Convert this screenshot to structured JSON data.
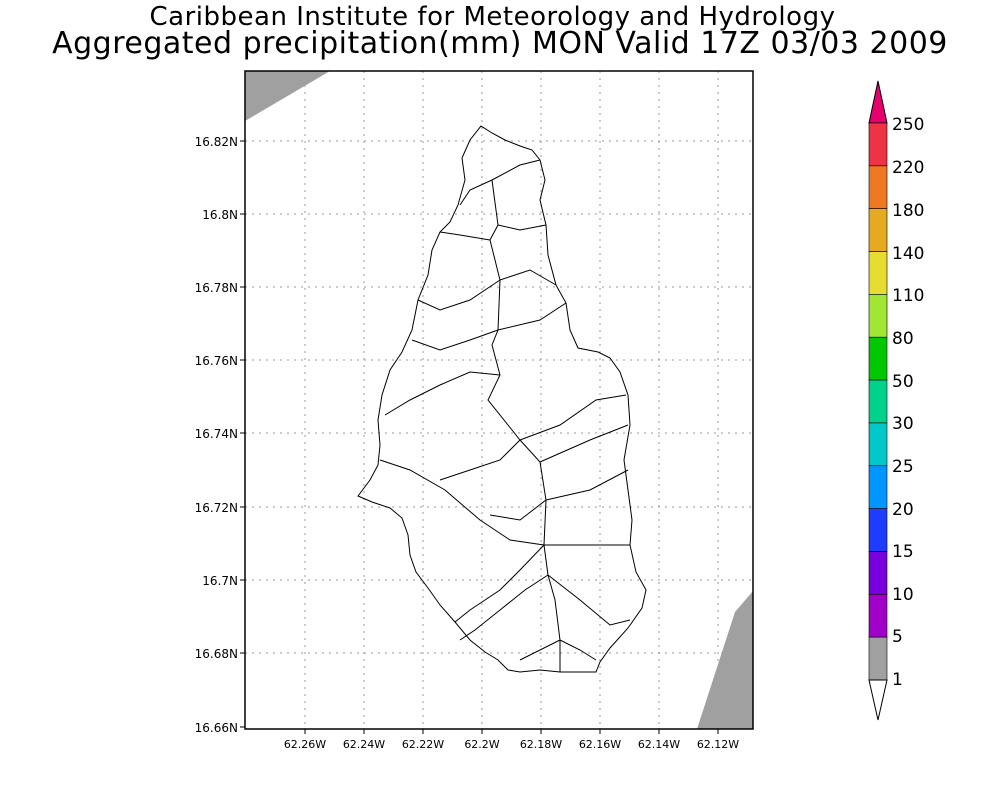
{
  "titles": {
    "line1": "Caribbean Institute for Meteorology and Hydrology",
    "line2": "Aggregated precipitation(mm) MON Valid 17Z 03/03 2009"
  },
  "map": {
    "lat_labels": [
      "16.82N",
      "16.8N",
      "16.78N",
      "16.76N",
      "16.74N",
      "16.72N",
      "16.7N",
      "16.68N",
      "16.66N"
    ],
    "lon_labels": [
      "62.26W",
      "62.24W",
      "62.22W",
      "62.2W",
      "62.18W",
      "62.16W",
      "62.14W",
      "62.12W"
    ],
    "grid": true,
    "shaded_bin": "1-5"
  },
  "colorbar": {
    "labels": [
      "250",
      "220",
      "180",
      "140",
      "110",
      "80",
      "50",
      "30",
      "25",
      "20",
      "15",
      "10",
      "5",
      "1"
    ],
    "colors": [
      "#ee3344",
      "#ee7722",
      "#e6aa22",
      "#e6dc32",
      "#a0e632",
      "#00c800",
      "#00d28c",
      "#00c8c8",
      "#0096ff",
      "#1e3cff",
      "#7800dc",
      "#a000c8",
      "#a0a0a0"
    ],
    "top_color": "#e6006e",
    "bottom_color": "#ffffff"
  }
}
